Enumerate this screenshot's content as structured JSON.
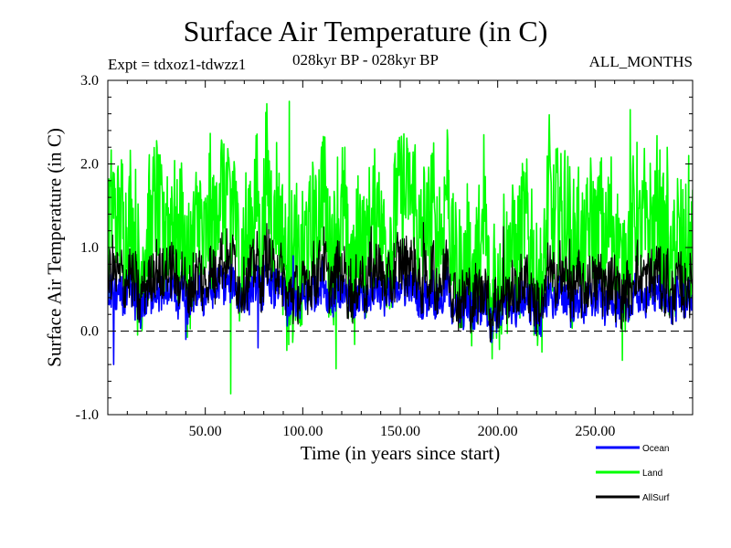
{
  "chart_data": {
    "type": "line",
    "title": "Surface Air Temperature (in C)",
    "experiment": "Expt = tdxoz1-tdwzz1",
    "subtitle": "028kyr BP - 028kyr BP",
    "period": "ALL_MONTHS",
    "xlabel": "Time (in years since start)",
    "ylabel": "Surface Air Temperature (in C)",
    "xlim": [
      0,
      300
    ],
    "ylim": [
      -1.0,
      3.0
    ],
    "x_ticks": [
      50,
      100,
      150,
      200,
      250
    ],
    "x_tick_labels": [
      "50.00",
      "100.00",
      "150.00",
      "200.00",
      "250.00"
    ],
    "y_ticks": [
      -1.0,
      0.0,
      1.0,
      2.0,
      3.0
    ],
    "y_tick_labels": [
      "-1.0",
      "0.0",
      "1.0",
      "2.0",
      "3.0"
    ],
    "reference_line": 0.0,
    "legend_position": "bottom-right",
    "series": [
      {
        "name": "Ocean",
        "color": "#0000ff",
        "mean": 0.35,
        "noise": 0.45,
        "extremes": [
          [
            3,
            -0.4
          ],
          [
            40,
            -0.1
          ],
          [
            77,
            -0.2
          ],
          [
            95,
            0.9
          ]
        ]
      },
      {
        "name": "Land",
        "color": "#00ff00",
        "mean": 1.1,
        "noise": 1.6,
        "extremes": [
          [
            63,
            -0.75
          ],
          [
            93,
            2.75
          ],
          [
            117,
            -0.45
          ],
          [
            193,
            2.35
          ],
          [
            268,
            2.65
          ],
          [
            298,
            2.1
          ]
        ]
      },
      {
        "name": "AllSurf",
        "color": "#000000",
        "mean": 0.55,
        "noise": 0.7,
        "extremes": [
          [
            135,
            1.25
          ],
          [
            162,
            1.3
          ],
          [
            203,
            1.25
          ],
          [
            237,
            1.1
          ]
        ]
      }
    ],
    "legend": [
      {
        "name": "Ocean",
        "color": "#0000ff"
      },
      {
        "name": "Land",
        "color": "#00ff00"
      },
      {
        "name": "AllSurf",
        "color": "#000000"
      }
    ]
  }
}
